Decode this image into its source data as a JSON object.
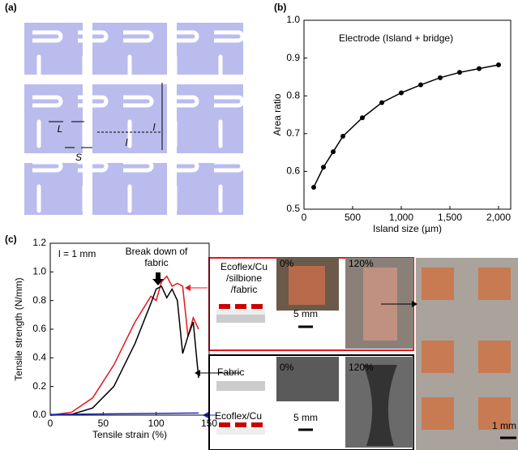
{
  "panel_labels": [
    "(a)",
    "(b)",
    "(c)"
  ],
  "diagram": {
    "labels": [
      "L",
      "S",
      "l",
      "l"
    ]
  },
  "photos": {
    "labels": [
      "0%",
      "120%",
      "0%",
      "120%"
    ],
    "scale_bars": [
      "5 mm",
      "5 mm",
      "1 mm"
    ]
  },
  "chart_data": [
    {
      "type": "line",
      "markers": true,
      "color": "#000000",
      "annotation": "Electrode (Island + bridge)",
      "xlabel": "Island size (µm)",
      "ylabel": "Area ratio",
      "x": [
        100,
        200,
        300,
        400,
        600,
        800,
        1000,
        1200,
        1400,
        1600,
        1800,
        2000
      ],
      "values": [
        0.558,
        0.611,
        0.652,
        0.693,
        0.742,
        0.782,
        0.808,
        0.829,
        0.848,
        0.862,
        0.872,
        0.882
      ],
      "xlim": [
        0,
        2125
      ],
      "ylim": [
        0.5,
        1.0
      ],
      "xticks": [
        0,
        500,
        {
          "value": 1000,
          "label": "1,000"
        },
        {
          "value": 1500,
          "label": "1,500"
        },
        {
          "value": 2000,
          "label": "2,000"
        }
      ],
      "yticks": [
        0.5,
        0.6,
        0.7,
        0.8,
        0.9,
        {
          "value": 1,
          "label": "1.0"
        }
      ]
    },
    {
      "type": "line",
      "annotations": [
        "l = 1 mm",
        "Break down of fabric"
      ],
      "xlabel": "Tensile strain (%)",
      "ylabel": "Tensile strength (N/mm)",
      "xlim": [
        0,
        150
      ],
      "ylim": [
        0,
        1.2
      ],
      "xticks": [
        0,
        50,
        100,
        150
      ],
      "yticks": [
        {
          "value": 0,
          "label": "0.0"
        },
        0.2,
        0.4,
        0.6,
        0.8,
        {
          "value": 1,
          "label": "1.0"
        },
        1.2
      ],
      "series": [
        {
          "name": "Ecoflex/Cu /silbione /fabric",
          "color": "#e8141c",
          "x": [
            0,
            20,
            40,
            60,
            80,
            95,
            100,
            105,
            110,
            115,
            120,
            125,
            130,
            135,
            140
          ],
          "values": [
            0,
            0.02,
            0.12,
            0.35,
            0.65,
            0.83,
            0.8,
            0.93,
            0.97,
            0.9,
            0.92,
            0.9,
            0.55,
            0.68,
            0.6
          ]
        },
        {
          "name": "Fabric",
          "color": "#000000",
          "x": [
            0,
            20,
            40,
            60,
            80,
            95,
            100,
            105,
            110,
            115,
            120,
            125,
            130,
            135,
            140
          ],
          "values": [
            0,
            0.005,
            0.05,
            0.2,
            0.5,
            0.78,
            0.88,
            0.9,
            0.82,
            0.88,
            0.8,
            0.43,
            0.55,
            0.65,
            0.26
          ]
        },
        {
          "name": "Ecoflex/Cu",
          "color": "#1a2ad0",
          "x": [
            0,
            140
          ],
          "values": [
            0.005,
            0.015
          ]
        }
      ]
    }
  ]
}
